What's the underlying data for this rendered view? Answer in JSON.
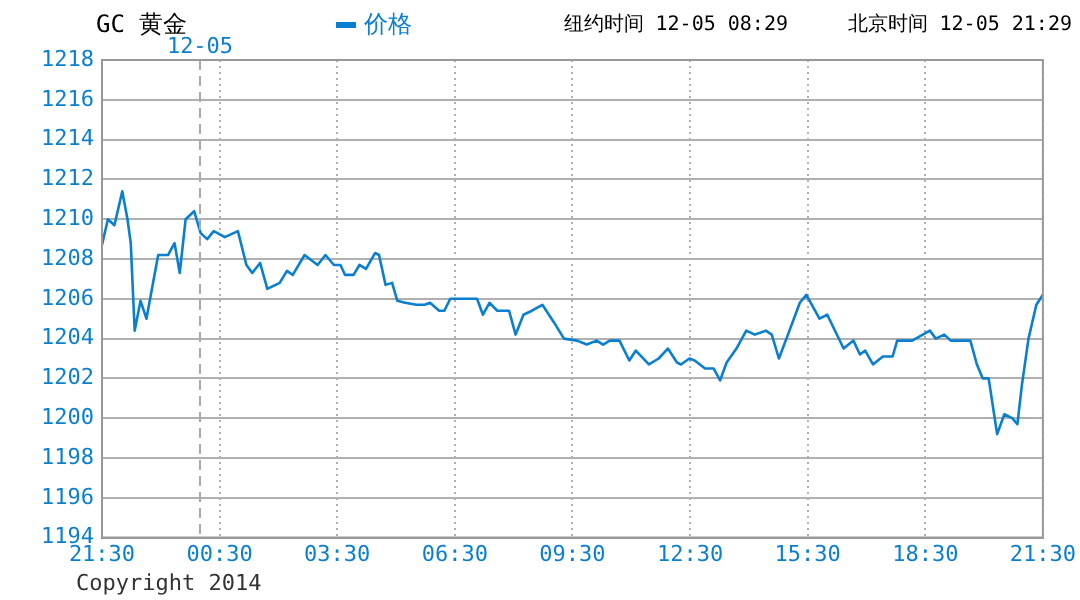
{
  "chart_data": {
    "type": "line",
    "title": "GC 黄金",
    "annotations": [
      "纽约时间 12-05 08:29",
      "北京时间 12-05 21:29",
      "Copyright 2014"
    ],
    "x": [
      "2014-12-04T21:30",
      "2014-12-04T21:39",
      "2014-12-04T21:49",
      "2014-12-04T22:01",
      "2014-12-04T22:09",
      "2014-12-04T22:14",
      "2014-12-04T22:20",
      "2014-12-04T22:29",
      "2014-12-04T22:38",
      "2014-12-04T22:56",
      "2014-12-04T23:11",
      "2014-12-04T23:21",
      "2014-12-04T23:29",
      "2014-12-04T23:38",
      "2014-12-04T23:51",
      "2014-12-05T00:01",
      "2014-12-05T00:11",
      "2014-12-05T00:21",
      "2014-12-05T00:38",
      "2014-12-05T00:58",
      "2014-12-05T01:11",
      "2014-12-05T01:20",
      "2014-12-05T01:32",
      "2014-12-05T01:43",
      "2014-12-05T02:02",
      "2014-12-05T02:13",
      "2014-12-05T02:22",
      "2014-12-05T02:40",
      "2014-12-05T03:00",
      "2014-12-05T03:12",
      "2014-12-05T03:25",
      "2014-12-05T03:35",
      "2014-12-05T03:42",
      "2014-12-05T03:55",
      "2014-12-05T04:04",
      "2014-12-05T04:14",
      "2014-12-05T04:28",
      "2014-12-05T04:34",
      "2014-12-05T04:44",
      "2014-12-05T04:54",
      "2014-12-05T05:02",
      "2014-12-05T05:14",
      "2014-12-05T05:31",
      "2014-12-05T05:44",
      "2014-12-05T05:52",
      "2014-12-05T06:06",
      "2014-12-05T06:14",
      "2014-12-05T06:23",
      "2014-12-05T07:04",
      "2014-12-05T07:13",
      "2014-12-05T07:23",
      "2014-12-05T07:35",
      "2014-12-05T07:53",
      "2014-12-05T08:03",
      "2014-12-05T08:15",
      "2014-12-05T08:28",
      "2014-12-05T08:44",
      "2014-12-05T09:02",
      "2014-12-05T09:17",
      "2014-12-05T09:37",
      "2014-12-05T09:52",
      "2014-12-05T10:07",
      "2014-12-05T10:17",
      "2014-12-05T10:27",
      "2014-12-05T10:42",
      "2014-12-05T10:57",
      "2014-12-05T11:07",
      "2014-12-05T11:27",
      "2014-12-05T11:42",
      "2014-12-05T11:56",
      "2014-12-05T12:10",
      "2014-12-05T12:16",
      "2014-12-05T12:29",
      "2014-12-05T12:37",
      "2014-12-05T12:53",
      "2014-12-05T13:06",
      "2014-12-05T13:16",
      "2014-12-05T13:26",
      "2014-12-05T13:41",
      "2014-12-05T13:56",
      "2014-12-05T14:09",
      "2014-12-05T14:26",
      "2014-12-05T14:35",
      "2014-12-05T14:46",
      "2014-12-05T15:01",
      "2014-12-05T15:18",
      "2014-12-05T15:28",
      "2014-12-05T15:48",
      "2014-12-05T16:00",
      "2014-12-05T16:25",
      "2014-12-05T16:40",
      "2014-12-05T16:50",
      "2014-12-05T16:58",
      "2014-12-05T17:10",
      "2014-12-05T17:25",
      "2014-12-05T17:40",
      "2014-12-05T17:47",
      "2014-12-05T18:10",
      "2014-12-05T18:37",
      "2014-12-05T18:46",
      "2014-12-05T18:59",
      "2014-12-05T19:09",
      "2014-12-05T19:39",
      "2014-12-05T19:49",
      "2014-12-05T19:58",
      "2014-12-05T20:07",
      "2014-12-05T20:13",
      "2014-12-05T20:20",
      "2014-12-05T20:31",
      "2014-12-05T20:43",
      "2014-12-05T20:51",
      "2014-12-05T20:58",
      "2014-12-05T21:08",
      "2014-12-05T21:20",
      "2014-12-05T21:30"
    ],
    "series": [
      {
        "name": "价格",
        "color": "#0a7fd0",
        "values": [
          1208.7,
          1210,
          1209.7,
          1211.4,
          1210,
          1208.8,
          1204.4,
          1205.9,
          1205,
          1208.2,
          1208.2,
          1208.8,
          1207.3,
          1210,
          1210.4,
          1209.3,
          1209,
          1209.4,
          1209.1,
          1209.4,
          1207.7,
          1207.3,
          1207.8,
          1206.5,
          1206.8,
          1207.4,
          1207.2,
          1208.2,
          1207.7,
          1208.2,
          1207.7,
          1207.7,
          1207.2,
          1207.2,
          1207.7,
          1207.5,
          1208.3,
          1208.2,
          1206.7,
          1206.8,
          1205.9,
          1205.8,
          1205.7,
          1205.7,
          1205.8,
          1205.4,
          1205.4,
          1206,
          1206,
          1205.2,
          1205.8,
          1205.4,
          1205.4,
          1204.2,
          1205.2,
          1205.4,
          1205.7,
          1204.8,
          1204,
          1203.9,
          1203.7,
          1203.9,
          1203.7,
          1203.9,
          1203.9,
          1202.9,
          1203.4,
          1202.7,
          1203,
          1203.5,
          1202.8,
          1202.7,
          1203,
          1202.9,
          1202.5,
          1202.5,
          1201.9,
          1202.8,
          1203.5,
          1204.4,
          1204.2,
          1204.4,
          1204.2,
          1203,
          1204.3,
          1205.8,
          1206.2,
          1205,
          1205.2,
          1203.5,
          1203.9,
          1203.2,
          1203.4,
          1202.7,
          1203.1,
          1203.1,
          1203.9,
          1203.9,
          1204.4,
          1204,
          1204.2,
          1203.9,
          1203.9,
          1202.7,
          1202,
          1202,
          1200.7,
          1199.2,
          1200.2,
          1200,
          1199.7,
          1201.7,
          1204,
          1205.7,
          1206.2
        ]
      }
    ],
    "xlim": [
      "2014-12-04T21:30",
      "2014-12-05T21:30"
    ],
    "xticks": [
      {
        "value": "2014-12-04T21:30",
        "label": "21:30"
      },
      {
        "value": "2014-12-05T00:30",
        "label": "00:30"
      },
      {
        "value": "2014-12-05T03:30",
        "label": "03:30"
      },
      {
        "value": "2014-12-05T06:30",
        "label": "06:30"
      },
      {
        "value": "2014-12-05T09:30",
        "label": "09:30"
      },
      {
        "value": "2014-12-05T12:30",
        "label": "12:30"
      },
      {
        "value": "2014-12-05T15:30",
        "label": "15:30"
      },
      {
        "value": "2014-12-05T18:30",
        "label": "18:30"
      },
      {
        "value": "2014-12-05T21:30",
        "label": "21:30"
      }
    ],
    "ylim": [
      1194,
      1218
    ],
    "yticks": [
      1194,
      1196,
      1198,
      1200,
      1202,
      1204,
      1206,
      1208,
      1210,
      1212,
      1214,
      1216,
      1218
    ],
    "ref_lines": [
      {
        "axis": "x",
        "value": "2014-12-05T00:00",
        "label": "12-05",
        "color": "#aaaaaa",
        "line_style": "dashed"
      }
    ],
    "grid": true,
    "legend": "top",
    "marker": "none",
    "line_style": "solid"
  }
}
